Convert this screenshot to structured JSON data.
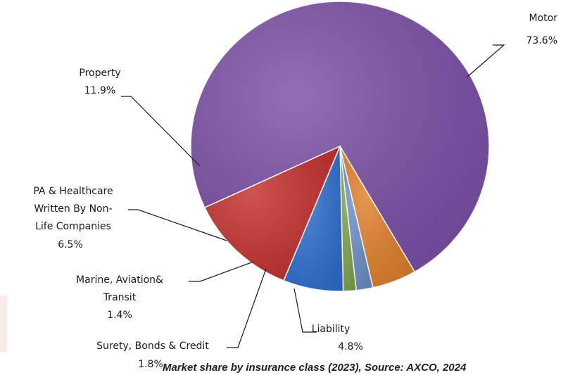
{
  "chart_data": {
    "type": "pie",
    "title": "",
    "slices": [
      {
        "label": [
          "Motor"
        ],
        "value_label": "73.6%",
        "value": 73.6,
        "color": "#7b50a6"
      },
      {
        "label": [
          "Liability"
        ],
        "value_label": "4.8%",
        "value": 4.8,
        "color": "#e0802a"
      },
      {
        "label": [
          "Surety, Bonds & Credit"
        ],
        "value_label": "1.8%",
        "value": 1.8,
        "color": "#6e8fc8"
      },
      {
        "label": [
          "Marine, Aviation&",
          "Transit"
        ],
        "value_label": "1.4%",
        "value": 1.4,
        "color": "#7ea34c"
      },
      {
        "label": [
          "PA & Healthcare",
          "Written By Non-",
          "Life Companies"
        ],
        "value_label": "6.5%",
        "value": 6.5,
        "color": "#2f6fd0"
      },
      {
        "label": [
          "Property"
        ],
        "value_label": "11.9%",
        "value": 11.9,
        "color": "#c3302c"
      }
    ],
    "legend": false
  },
  "caption": "Market share by insurance class (2023), Source: AXCO, 2024"
}
